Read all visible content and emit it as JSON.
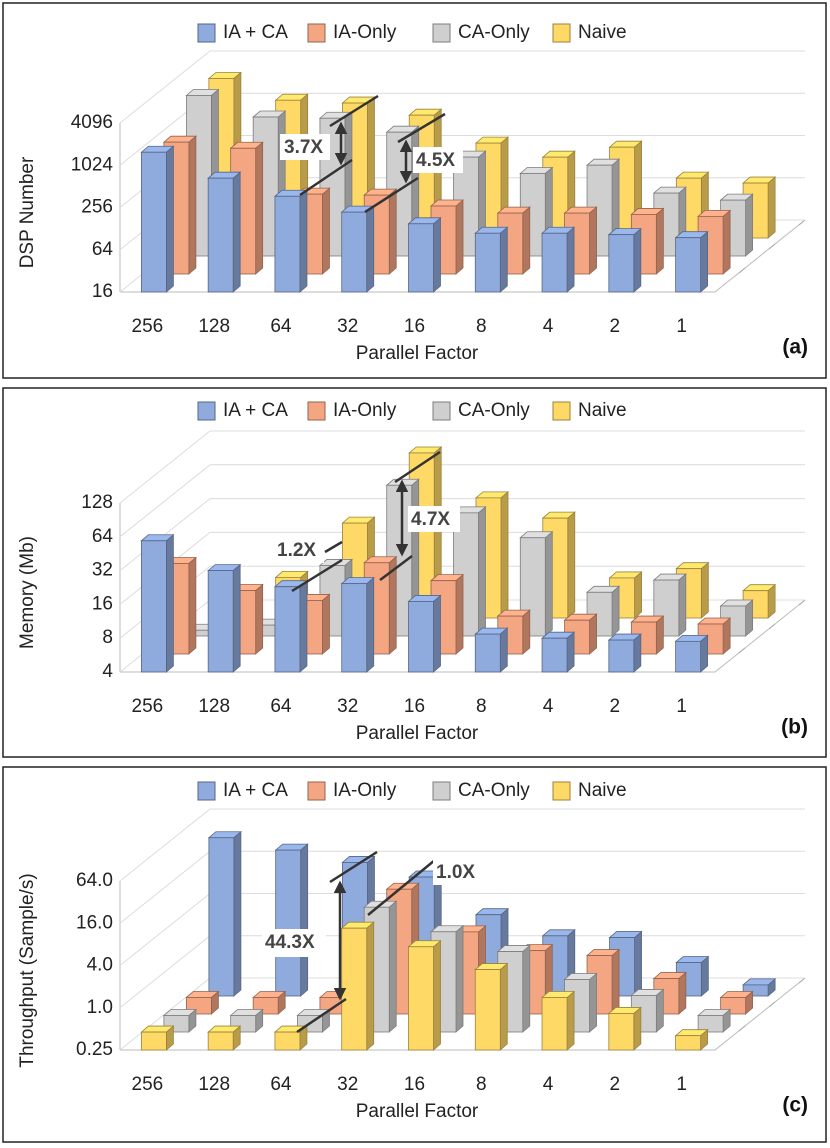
{
  "chart_data": [
    {
      "type": "bar3d",
      "panel_label": "(a)",
      "xlabel": "Parallel Factor",
      "ylabel": "DSP Number",
      "categories": [
        "256",
        "128",
        "64",
        "32",
        "16",
        "8",
        "4",
        "2",
        "1"
      ],
      "yscale": "log",
      "ylim": [
        16,
        4096
      ],
      "yticks": [
        16,
        64,
        256,
        1024,
        4096
      ],
      "grid": true,
      "legend": "top",
      "depth_reversed": false,
      "series": [
        {
          "name": "IA + CA",
          "color": "#8faadc",
          "values": [
            1570,
            670,
            370,
            220,
            150,
            110,
            110,
            105,
            95
          ]
        },
        {
          "name": "IA-Only",
          "color": "#f4a582",
          "values": [
            1210,
            990,
            220,
            213,
            149,
            118,
            118,
            113,
            106
          ]
        },
        {
          "name": "CA-Only",
          "color": "#cfcfcf",
          "values": [
            3100,
            1530,
            1470,
            930,
            410,
            240,
            315,
            126,
            100
          ]
        },
        {
          "name": "Naive",
          "color": "#ffd966",
          "values": [
            3000,
            1470,
            1340,
            900,
            360,
            227,
            315,
            114,
            97
          ]
        }
      ],
      "annotations": [
        "3.7X",
        "4.5X"
      ]
    },
    {
      "type": "bar3d",
      "panel_label": "(b)",
      "xlabel": "Parallel Factor",
      "ylabel": "Memory (Mb)",
      "categories": [
        "256",
        "128",
        "64",
        "32",
        "16",
        "8",
        "4",
        "2",
        "1"
      ],
      "yscale": "log",
      "ylim": [
        4,
        128
      ],
      "yticks": [
        4,
        8,
        16,
        32,
        64,
        128
      ],
      "grid": true,
      "legend": "top",
      "depth_reversed": false,
      "series": [
        {
          "name": "IA + CA",
          "color": "#8faadc",
          "values": [
            59,
            32,
            23,
            24.5,
            17,
            8.7,
            8,
            7.7,
            7.5
          ]
        },
        {
          "name": "IA-Only",
          "color": "#f4a582",
          "values": [
            25.6,
            14.7,
            12,
            26,
            18,
            8.7,
            8,
            7.7,
            7.4
          ]
        },
        {
          "name": "CA-Only",
          "color": "#cfcfcf",
          "values": [
            4.5,
            5,
            17,
            88,
            50,
            30,
            9.8,
            12.6,
            7.4
          ]
        },
        {
          "name": "Naive",
          "color": "#ffd966",
          "values": [
            5,
            9.2,
            28,
            118,
            47,
            31,
            9.1,
            11,
            7
          ]
        }
      ],
      "annotations": [
        "1.2X",
        "4.7X"
      ]
    },
    {
      "type": "bar3d",
      "panel_label": "(c)",
      "xlabel": "Parallel Factor",
      "ylabel": "Throughput (Sample/s)",
      "categories": [
        "256",
        "128",
        "64",
        "32",
        "16",
        "8",
        "4",
        "2",
        "1"
      ],
      "yscale": "log",
      "ylim": [
        0.25,
        64
      ],
      "yticks": [
        0.25,
        {
          "value": 1,
          "label": "1.0"
        },
        {
          "value": 4,
          "label": "4.0"
        },
        {
          "value": 16,
          "label": "16.0"
        },
        {
          "value": 64,
          "label": "64.0"
        }
      ],
      "grid": true,
      "legend": "top",
      "depth_reversed": true,
      "series": [
        {
          "name": "IA + CA",
          "color": "#8faadc",
          "values": [
            45,
            30,
            20,
            12.4,
            3.6,
            1.8,
            1.7,
            0.75,
            0.36
          ]
        },
        {
          "name": "IA-Only",
          "color": "#f4a582",
          "values": [
            0.43,
            0.43,
            0.43,
            15,
            3.7,
            2,
            1.7,
            0.8,
            0.43
          ]
        },
        {
          "name": "CA-Only",
          "color": "#cfcfcf",
          "values": [
            0.43,
            0.43,
            0.43,
            15,
            6.7,
            3.5,
            1.4,
            0.83,
            0.43
          ]
        },
        {
          "name": "Naive",
          "color": "#ffd966",
          "values": [
            0.45,
            0.45,
            0.45,
            13.6,
            7.4,
            3.5,
            1.4,
            0.83,
            0.4
          ]
        }
      ],
      "annotations": [
        "44.3X",
        "1.0X"
      ]
    }
  ]
}
